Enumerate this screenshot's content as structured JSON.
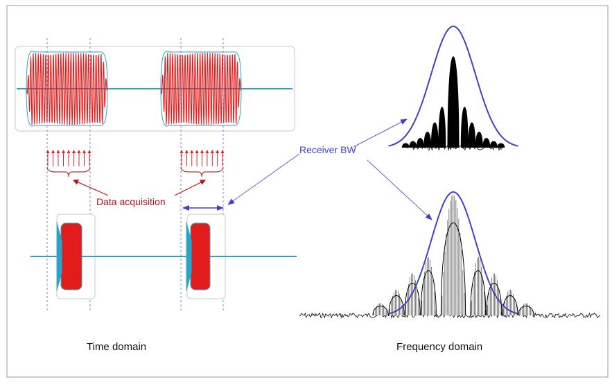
{
  "labels": {
    "receiver_bw": "Receiver BW",
    "data_acquisition": "Data acquisition",
    "time_domain": "Time domain",
    "frequency_domain": "Frequency domain"
  },
  "colors": {
    "signal_red": "#e21b1b",
    "baseline_cyan": "#2aa3c7",
    "receiver_blue": "#4040c8",
    "annotation_red": "#b5121b",
    "spectrum_black": "#000000",
    "dashed_guides": "#7e86c8"
  }
}
